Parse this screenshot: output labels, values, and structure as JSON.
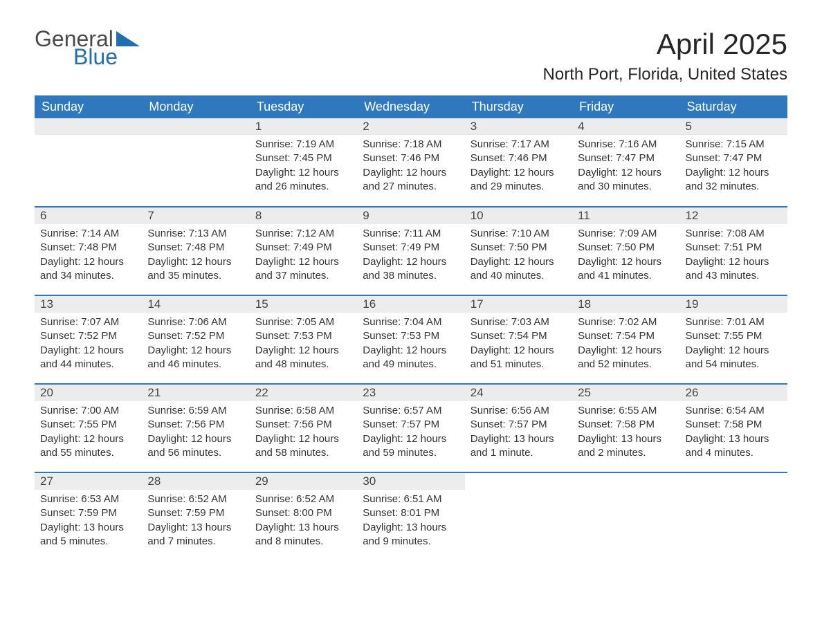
{
  "logo": {
    "word1": "General",
    "word2": "Blue",
    "tri_color": "#1f6fb2"
  },
  "title": "April 2025",
  "location": "North Port, Florida, United States",
  "colors": {
    "header_bg": "#2f78bd",
    "header_text": "#ffffff",
    "daynum_bg": "#ececec",
    "row_border": "#2f78bd",
    "text": "#333333",
    "logo_gray": "#4a4a4a",
    "logo_blue": "#1f6fb2"
  },
  "typography": {
    "title_size": 42,
    "location_size": 24,
    "header_size": 18,
    "cell_size": 15
  },
  "weekdays": [
    "Sunday",
    "Monday",
    "Tuesday",
    "Wednesday",
    "Thursday",
    "Friday",
    "Saturday"
  ],
  "weeks": [
    [
      null,
      null,
      {
        "n": "1",
        "sunrise": "Sunrise: 7:19 AM",
        "sunset": "Sunset: 7:45 PM",
        "daylight": "Daylight: 12 hours and 26 minutes."
      },
      {
        "n": "2",
        "sunrise": "Sunrise: 7:18 AM",
        "sunset": "Sunset: 7:46 PM",
        "daylight": "Daylight: 12 hours and 27 minutes."
      },
      {
        "n": "3",
        "sunrise": "Sunrise: 7:17 AM",
        "sunset": "Sunset: 7:46 PM",
        "daylight": "Daylight: 12 hours and 29 minutes."
      },
      {
        "n": "4",
        "sunrise": "Sunrise: 7:16 AM",
        "sunset": "Sunset: 7:47 PM",
        "daylight": "Daylight: 12 hours and 30 minutes."
      },
      {
        "n": "5",
        "sunrise": "Sunrise: 7:15 AM",
        "sunset": "Sunset: 7:47 PM",
        "daylight": "Daylight: 12 hours and 32 minutes."
      }
    ],
    [
      {
        "n": "6",
        "sunrise": "Sunrise: 7:14 AM",
        "sunset": "Sunset: 7:48 PM",
        "daylight": "Daylight: 12 hours and 34 minutes."
      },
      {
        "n": "7",
        "sunrise": "Sunrise: 7:13 AM",
        "sunset": "Sunset: 7:48 PM",
        "daylight": "Daylight: 12 hours and 35 minutes."
      },
      {
        "n": "8",
        "sunrise": "Sunrise: 7:12 AM",
        "sunset": "Sunset: 7:49 PM",
        "daylight": "Daylight: 12 hours and 37 minutes."
      },
      {
        "n": "9",
        "sunrise": "Sunrise: 7:11 AM",
        "sunset": "Sunset: 7:49 PM",
        "daylight": "Daylight: 12 hours and 38 minutes."
      },
      {
        "n": "10",
        "sunrise": "Sunrise: 7:10 AM",
        "sunset": "Sunset: 7:50 PM",
        "daylight": "Daylight: 12 hours and 40 minutes."
      },
      {
        "n": "11",
        "sunrise": "Sunrise: 7:09 AM",
        "sunset": "Sunset: 7:50 PM",
        "daylight": "Daylight: 12 hours and 41 minutes."
      },
      {
        "n": "12",
        "sunrise": "Sunrise: 7:08 AM",
        "sunset": "Sunset: 7:51 PM",
        "daylight": "Daylight: 12 hours and 43 minutes."
      }
    ],
    [
      {
        "n": "13",
        "sunrise": "Sunrise: 7:07 AM",
        "sunset": "Sunset: 7:52 PM",
        "daylight": "Daylight: 12 hours and 44 minutes."
      },
      {
        "n": "14",
        "sunrise": "Sunrise: 7:06 AM",
        "sunset": "Sunset: 7:52 PM",
        "daylight": "Daylight: 12 hours and 46 minutes."
      },
      {
        "n": "15",
        "sunrise": "Sunrise: 7:05 AM",
        "sunset": "Sunset: 7:53 PM",
        "daylight": "Daylight: 12 hours and 48 minutes."
      },
      {
        "n": "16",
        "sunrise": "Sunrise: 7:04 AM",
        "sunset": "Sunset: 7:53 PM",
        "daylight": "Daylight: 12 hours and 49 minutes."
      },
      {
        "n": "17",
        "sunrise": "Sunrise: 7:03 AM",
        "sunset": "Sunset: 7:54 PM",
        "daylight": "Daylight: 12 hours and 51 minutes."
      },
      {
        "n": "18",
        "sunrise": "Sunrise: 7:02 AM",
        "sunset": "Sunset: 7:54 PM",
        "daylight": "Daylight: 12 hours and 52 minutes."
      },
      {
        "n": "19",
        "sunrise": "Sunrise: 7:01 AM",
        "sunset": "Sunset: 7:55 PM",
        "daylight": "Daylight: 12 hours and 54 minutes."
      }
    ],
    [
      {
        "n": "20",
        "sunrise": "Sunrise: 7:00 AM",
        "sunset": "Sunset: 7:55 PM",
        "daylight": "Daylight: 12 hours and 55 minutes."
      },
      {
        "n": "21",
        "sunrise": "Sunrise: 6:59 AM",
        "sunset": "Sunset: 7:56 PM",
        "daylight": "Daylight: 12 hours and 56 minutes."
      },
      {
        "n": "22",
        "sunrise": "Sunrise: 6:58 AM",
        "sunset": "Sunset: 7:56 PM",
        "daylight": "Daylight: 12 hours and 58 minutes."
      },
      {
        "n": "23",
        "sunrise": "Sunrise: 6:57 AM",
        "sunset": "Sunset: 7:57 PM",
        "daylight": "Daylight: 12 hours and 59 minutes."
      },
      {
        "n": "24",
        "sunrise": "Sunrise: 6:56 AM",
        "sunset": "Sunset: 7:57 PM",
        "daylight": "Daylight: 13 hours and 1 minute."
      },
      {
        "n": "25",
        "sunrise": "Sunrise: 6:55 AM",
        "sunset": "Sunset: 7:58 PM",
        "daylight": "Daylight: 13 hours and 2 minutes."
      },
      {
        "n": "26",
        "sunrise": "Sunrise: 6:54 AM",
        "sunset": "Sunset: 7:58 PM",
        "daylight": "Daylight: 13 hours and 4 minutes."
      }
    ],
    [
      {
        "n": "27",
        "sunrise": "Sunrise: 6:53 AM",
        "sunset": "Sunset: 7:59 PM",
        "daylight": "Daylight: 13 hours and 5 minutes."
      },
      {
        "n": "28",
        "sunrise": "Sunrise: 6:52 AM",
        "sunset": "Sunset: 7:59 PM",
        "daylight": "Daylight: 13 hours and 7 minutes."
      },
      {
        "n": "29",
        "sunrise": "Sunrise: 6:52 AM",
        "sunset": "Sunset: 8:00 PM",
        "daylight": "Daylight: 13 hours and 8 minutes."
      },
      {
        "n": "30",
        "sunrise": "Sunrise: 6:51 AM",
        "sunset": "Sunset: 8:01 PM",
        "daylight": "Daylight: 13 hours and 9 minutes."
      },
      null,
      null,
      null
    ]
  ]
}
